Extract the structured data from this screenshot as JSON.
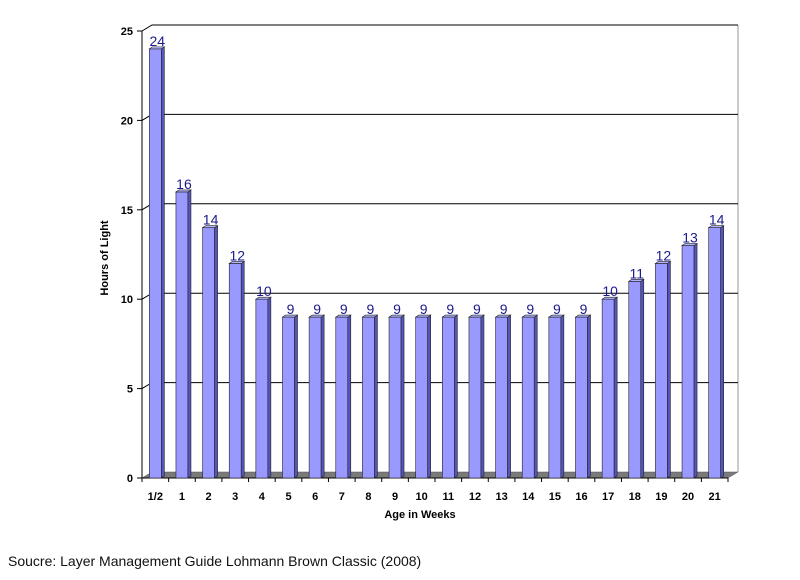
{
  "source_note": "Soucre: Layer Management Guide Lohmann Brown Classic (2008)",
  "colors": {
    "bar_front": "#9999ff",
    "bar_side": "#5555bb",
    "bar_top": "#b3b3ff",
    "data_label": "#1a1a8c",
    "floor": "#7a7a7a",
    "gridline": "#000000"
  },
  "chart_data": {
    "type": "bar",
    "style": "3d",
    "xlabel": "Age in Weeks",
    "ylabel": "Hours of Light",
    "ylim": [
      0,
      25
    ],
    "yticks": [
      0,
      5,
      10,
      15,
      20,
      25
    ],
    "grid": true,
    "legend": "none",
    "categories": [
      "1/2",
      "1",
      "2",
      "3",
      "4",
      "5",
      "6",
      "7",
      "8",
      "9",
      "10",
      "11",
      "12",
      "13",
      "14",
      "15",
      "16",
      "17",
      "18",
      "19",
      "20",
      "21"
    ],
    "values": [
      24,
      16,
      14,
      12,
      10,
      9,
      9,
      9,
      9,
      9,
      9,
      9,
      9,
      9,
      9,
      9,
      9,
      10,
      11,
      12,
      13,
      14
    ],
    "data_labels": [
      "24",
      "16",
      "14",
      "12",
      "10",
      "9",
      "9",
      "9",
      "9",
      "9",
      "9",
      "9",
      "9",
      "9",
      "9",
      "9",
      "9",
      "10",
      "11",
      "12",
      "13",
      "14"
    ]
  }
}
